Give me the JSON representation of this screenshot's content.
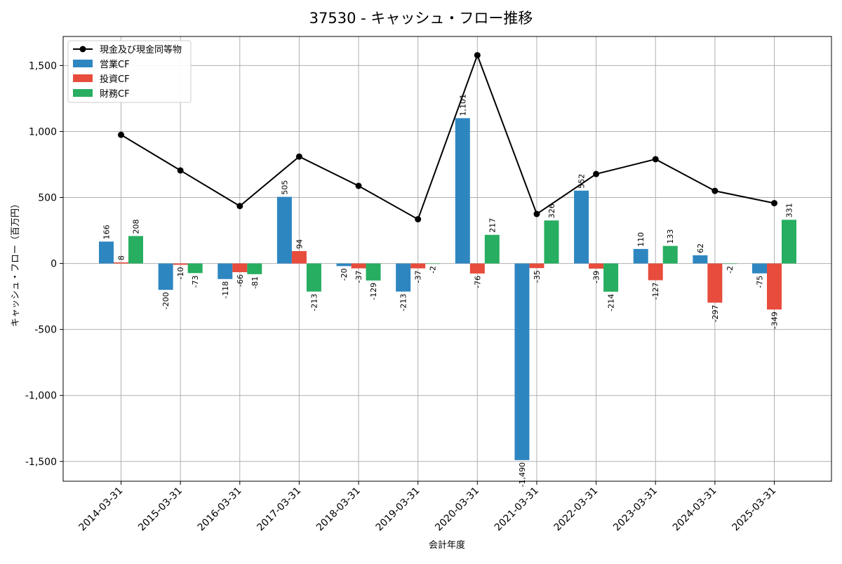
{
  "chart_data": {
    "type": "bar",
    "title": "37530 - キャッシュ・フロー推移",
    "xlabel": "会計年度",
    "ylabel": "キャッシュ・フロー（百万円）",
    "ylim": [
      -1650,
      1720
    ],
    "yticks": [
      -1500,
      -1000,
      -500,
      0,
      500,
      1000,
      1500
    ],
    "ytick_labels": [
      "-1,500",
      "-1,000",
      "-500",
      "0",
      "500",
      "1,000",
      "1,500"
    ],
    "grid": true,
    "legend_position": "top-left",
    "categories": [
      "2014-03-31",
      "2015-03-31",
      "2016-03-31",
      "2017-03-31",
      "2018-03-31",
      "2019-03-31",
      "2020-03-31",
      "2021-03-31",
      "2022-03-31",
      "2023-03-31",
      "2024-03-31",
      "2025-03-31"
    ],
    "series": [
      {
        "name": "営業CF",
        "type": "bar",
        "color": "#2e86c1",
        "values": [
          166,
          -200,
          -118,
          505,
          -20,
          -213,
          1101,
          -1490,
          552,
          110,
          62,
          -75
        ],
        "labels": [
          "166",
          "-200",
          "-118",
          "505",
          "-20",
          "-213",
          "1,101",
          "-1,490",
          "552",
          "110",
          "62",
          "-75"
        ]
      },
      {
        "name": "投資CF",
        "type": "bar",
        "color": "#e74c3c",
        "values": [
          8,
          -10,
          -66,
          94,
          -37,
          -37,
          -76,
          -35,
          -39,
          -127,
          -297,
          -349
        ],
        "labels": [
          "8",
          "-10",
          "-66",
          "94",
          "-37",
          "-37",
          "-76",
          "-35",
          "-39",
          "-127",
          "-297",
          "-349"
        ]
      },
      {
        "name": "財務CF",
        "type": "bar",
        "color": "#27ae60",
        "values": [
          208,
          -73,
          -81,
          -213,
          -129,
          -2,
          217,
          326,
          -214,
          133,
          -2,
          331
        ],
        "labels": [
          "208",
          "-73",
          "-81",
          "-213",
          "-129",
          "-2",
          "217",
          "326",
          "-214",
          "133",
          "-2",
          "331"
        ]
      },
      {
        "name": "現金及び現金同等物",
        "type": "line",
        "color": "#000000",
        "values": [
          975,
          705,
          435,
          810,
          588,
          335,
          1578,
          375,
          678,
          790,
          550,
          457
        ]
      }
    ]
  }
}
